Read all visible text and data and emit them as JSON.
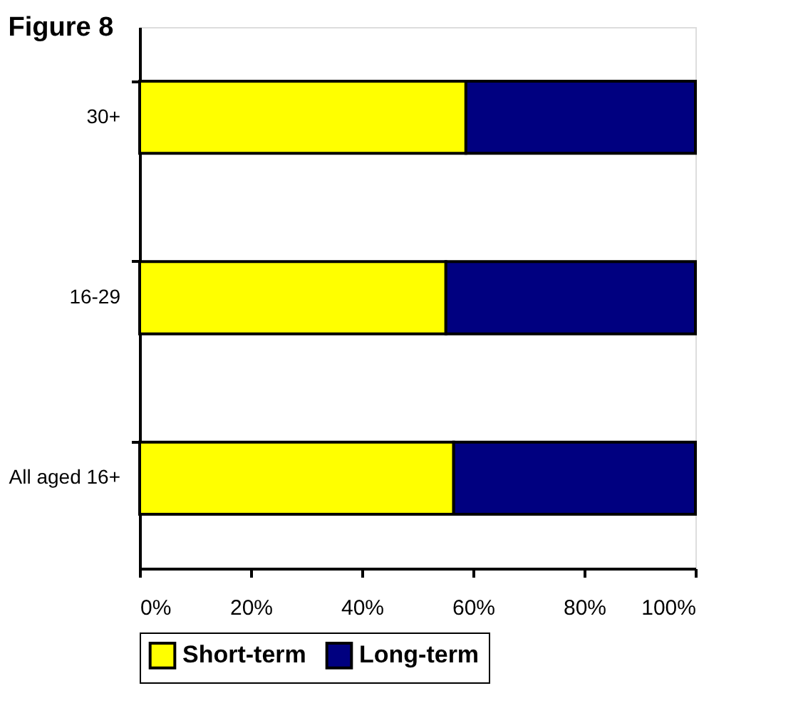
{
  "chart_data": {
    "type": "bar",
    "orientation": "horizontal",
    "stacked": true,
    "title": "Figure 8",
    "categories": [
      "30+",
      "16-29",
      "All aged 16+"
    ],
    "series": [
      {
        "name": "Short-term",
        "color": "#ffff00",
        "values": [
          58.7,
          55.1,
          56.5
        ]
      },
      {
        "name": "Long-term",
        "color": "#000080",
        "values": [
          41.3,
          44.9,
          43.5
        ]
      }
    ],
    "xlim": [
      0,
      100
    ],
    "xticks": [
      {
        "value": 0,
        "label": "0%"
      },
      {
        "value": 20,
        "label": "20%"
      },
      {
        "value": 40,
        "label": "40%"
      },
      {
        "value": 60,
        "label": "60%"
      },
      {
        "value": 80,
        "label": "80%"
      },
      {
        "value": 100,
        "label": "100%"
      }
    ],
    "grid": false,
    "legend": "bottom"
  }
}
